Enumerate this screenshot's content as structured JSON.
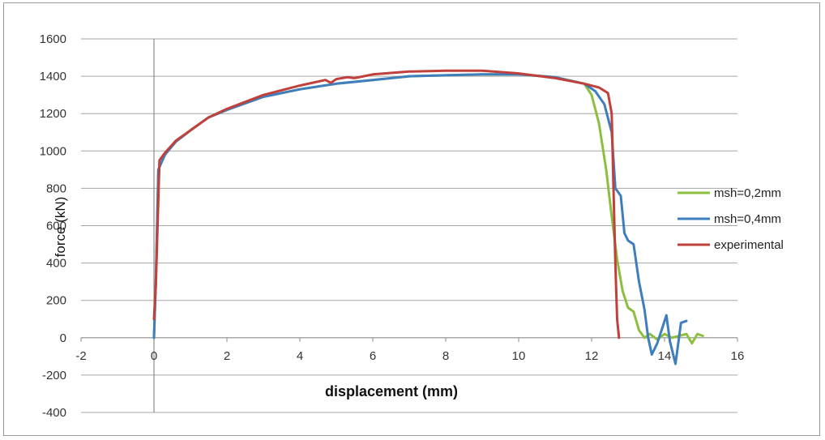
{
  "chart_data": {
    "type": "line",
    "title": "",
    "xlabel": "displacement (mm)",
    "ylabel": "force (kN)",
    "xlim": [
      -2,
      16
    ],
    "ylim": [
      -400,
      1600
    ],
    "xticks": [
      -2,
      0,
      2,
      4,
      6,
      8,
      10,
      12,
      14,
      16
    ],
    "yticks": [
      -400,
      -200,
      0,
      200,
      400,
      600,
      800,
      1000,
      1200,
      1400,
      1600
    ],
    "grid": "horizontal",
    "legend_position": "right",
    "series": [
      {
        "name": "msh=0,2mm",
        "color": "#8cbf3f",
        "points": [
          [
            0,
            0
          ],
          [
            0.05,
            300
          ],
          [
            0.12,
            900
          ],
          [
            0.3,
            980
          ],
          [
            0.6,
            1050
          ],
          [
            1,
            1110
          ],
          [
            1.5,
            1180
          ],
          [
            2,
            1220
          ],
          [
            3,
            1290
          ],
          [
            4,
            1330
          ],
          [
            5,
            1360
          ],
          [
            6,
            1380
          ],
          [
            7,
            1400
          ],
          [
            8,
            1405
          ],
          [
            9,
            1410
          ],
          [
            10,
            1410
          ],
          [
            11,
            1395
          ],
          [
            11.8,
            1360
          ],
          [
            12,
            1300
          ],
          [
            12.2,
            1150
          ],
          [
            12.4,
            900
          ],
          [
            12.55,
            650
          ],
          [
            12.7,
            420
          ],
          [
            12.85,
            250
          ],
          [
            13,
            160
          ],
          [
            13.15,
            140
          ],
          [
            13.3,
            40
          ],
          [
            13.45,
            0
          ],
          [
            13.6,
            20
          ],
          [
            13.8,
            -10
          ],
          [
            14.0,
            20
          ],
          [
            14.2,
            0
          ],
          [
            14.4,
            10
          ],
          [
            14.6,
            20
          ],
          [
            14.75,
            -30
          ],
          [
            14.9,
            20
          ],
          [
            15.05,
            10
          ]
        ]
      },
      {
        "name": "msh=0,4mm",
        "color": "#3e7ebe",
        "points": [
          [
            0,
            0
          ],
          [
            0.05,
            300
          ],
          [
            0.12,
            900
          ],
          [
            0.3,
            980
          ],
          [
            0.6,
            1050
          ],
          [
            1,
            1110
          ],
          [
            1.5,
            1180
          ],
          [
            2,
            1220
          ],
          [
            3,
            1290
          ],
          [
            4,
            1330
          ],
          [
            5,
            1360
          ],
          [
            6,
            1380
          ],
          [
            7,
            1400
          ],
          [
            8,
            1405
          ],
          [
            9,
            1410
          ],
          [
            10,
            1410
          ],
          [
            11,
            1395
          ],
          [
            11.8,
            1360
          ],
          [
            12.1,
            1320
          ],
          [
            12.35,
            1250
          ],
          [
            12.55,
            1100
          ],
          [
            12.65,
            800
          ],
          [
            12.8,
            760
          ],
          [
            12.9,
            560
          ],
          [
            13.0,
            520
          ],
          [
            13.15,
            500
          ],
          [
            13.3,
            300
          ],
          [
            13.45,
            150
          ],
          [
            13.55,
            0
          ],
          [
            13.65,
            -90
          ],
          [
            13.8,
            -30
          ],
          [
            13.95,
            60
          ],
          [
            14.05,
            120
          ],
          [
            14.15,
            -20
          ],
          [
            14.3,
            -140
          ],
          [
            14.45,
            80
          ],
          [
            14.6,
            90
          ]
        ]
      },
      {
        "name": "experimental",
        "color": "#c0403c",
        "points": [
          [
            0,
            100
          ],
          [
            0.05,
            280
          ],
          [
            0.15,
            950
          ],
          [
            0.3,
            990
          ],
          [
            0.6,
            1055
          ],
          [
            1,
            1110
          ],
          [
            1.5,
            1180
          ],
          [
            2,
            1225
          ],
          [
            3,
            1300
          ],
          [
            4,
            1350
          ],
          [
            4.7,
            1380
          ],
          [
            4.85,
            1365
          ],
          [
            5.0,
            1385
          ],
          [
            5.3,
            1395
          ],
          [
            5.5,
            1390
          ],
          [
            6,
            1410
          ],
          [
            7,
            1425
          ],
          [
            8,
            1430
          ],
          [
            9,
            1430
          ],
          [
            10,
            1415
          ],
          [
            11,
            1390
          ],
          [
            11.8,
            1360
          ],
          [
            12.2,
            1340
          ],
          [
            12.45,
            1310
          ],
          [
            12.55,
            1200
          ],
          [
            12.6,
            800
          ],
          [
            12.65,
            400
          ],
          [
            12.7,
            100
          ],
          [
            12.75,
            0
          ]
        ]
      }
    ]
  }
}
